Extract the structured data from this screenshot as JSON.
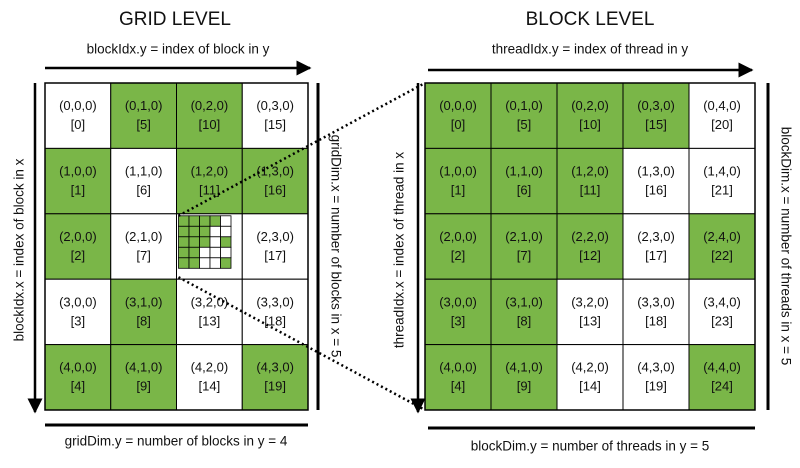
{
  "grid_level": {
    "title": "GRID LEVEL",
    "x_label": "blockIdx.y = index of block in y",
    "y_label": "blockIdx.x = index of block in x",
    "dim_x_label": "gridDim.x = number of blocks in x = 5",
    "dim_y_label": "gridDim.y = number of blocks in y = 4",
    "cells": [
      [
        {
          "coord": "(0,0,0)",
          "index": "[0]",
          "shaded": false
        },
        {
          "coord": "(0,1,0)",
          "index": "[5]",
          "shaded": true
        },
        {
          "coord": "(0,2,0)",
          "index": "[10]",
          "shaded": true
        },
        {
          "coord": "(0,3,0)",
          "index": "[15]",
          "shaded": false
        }
      ],
      [
        {
          "coord": "(1,0,0)",
          "index": "[1]",
          "shaded": true
        },
        {
          "coord": "(1,1,0)",
          "index": "[6]",
          "shaded": false
        },
        {
          "coord": "(1,2,0)",
          "index": "[11]",
          "shaded": true
        },
        {
          "coord": "(1,3,0)",
          "index": "[16]",
          "shaded": true
        }
      ],
      [
        {
          "coord": "(2,0,0)",
          "index": "[2]",
          "shaded": true
        },
        {
          "coord": "(2,1,0)",
          "index": "[7]",
          "shaded": false
        },
        null,
        {
          "coord": "(2,3,0)",
          "index": "[17]",
          "shaded": false
        }
      ],
      [
        {
          "coord": "(3,0,0)",
          "index": "[3]",
          "shaded": false
        },
        {
          "coord": "(3,1,0)",
          "index": "[8]",
          "shaded": true
        },
        {
          "coord": "(3,2,0)",
          "index": "[13]",
          "shaded": false
        },
        {
          "coord": "(3,3,0)",
          "index": "[18]",
          "shaded": false
        }
      ],
      [
        {
          "coord": "(4,0,0)",
          "index": "[4]",
          "shaded": true
        },
        {
          "coord": "(4,1,0)",
          "index": "[9]",
          "shaded": true
        },
        {
          "coord": "(4,2,0)",
          "index": "[14]",
          "shaded": false
        },
        {
          "coord": "(4,3,0)",
          "index": "[19]",
          "shaded": true
        }
      ]
    ]
  },
  "block_level": {
    "title": "BLOCK LEVEL",
    "x_label": "threadIdx.y = index of thread in y",
    "y_label": "threadIdx.x = index of thread in x",
    "dim_x_label": "blockDim.x = number of threads in x = 5",
    "dim_y_label": "blockDim.y = number of threads in y = 5",
    "cells": [
      [
        {
          "coord": "(0,0,0)",
          "index": "[0]",
          "shaded": true
        },
        {
          "coord": "(0,1,0)",
          "index": "[5]",
          "shaded": true
        },
        {
          "coord": "(0,2,0)",
          "index": "[10]",
          "shaded": true
        },
        {
          "coord": "(0,3,0)",
          "index": "[15]",
          "shaded": true
        },
        {
          "coord": "(0,4,0)",
          "index": "[20]",
          "shaded": false
        }
      ],
      [
        {
          "coord": "(1,0,0)",
          "index": "[1]",
          "shaded": true
        },
        {
          "coord": "(1,1,0)",
          "index": "[6]",
          "shaded": true
        },
        {
          "coord": "(1,2,0)",
          "index": "[11]",
          "shaded": true
        },
        {
          "coord": "(1,3,0)",
          "index": "[16]",
          "shaded": false
        },
        {
          "coord": "(1,4,0)",
          "index": "[21]",
          "shaded": false
        }
      ],
      [
        {
          "coord": "(2,0,0)",
          "index": "[2]",
          "shaded": true
        },
        {
          "coord": "(2,1,0)",
          "index": "[7]",
          "shaded": true
        },
        {
          "coord": "(2,2,0)",
          "index": "[12]",
          "shaded": true
        },
        {
          "coord": "(2,3,0)",
          "index": "[17]",
          "shaded": false
        },
        {
          "coord": "(2,4,0)",
          "index": "[22]",
          "shaded": true
        }
      ],
      [
        {
          "coord": "(3,0,0)",
          "index": "[3]",
          "shaded": true
        },
        {
          "coord": "(3,1,0)",
          "index": "[8]",
          "shaded": true
        },
        {
          "coord": "(3,2,0)",
          "index": "[13]",
          "shaded": false
        },
        {
          "coord": "(3,3,0)",
          "index": "[18]",
          "shaded": false
        },
        {
          "coord": "(3,4,0)",
          "index": "[23]",
          "shaded": false
        }
      ],
      [
        {
          "coord": "(4,0,0)",
          "index": "[4]",
          "shaded": true
        },
        {
          "coord": "(4,1,0)",
          "index": "[9]",
          "shaded": true
        },
        {
          "coord": "(4,2,0)",
          "index": "[14]",
          "shaded": false
        },
        {
          "coord": "(4,3,0)",
          "index": "[19]",
          "shaded": false
        },
        {
          "coord": "(4,4,0)",
          "index": "[24]",
          "shaded": true
        }
      ]
    ]
  }
}
